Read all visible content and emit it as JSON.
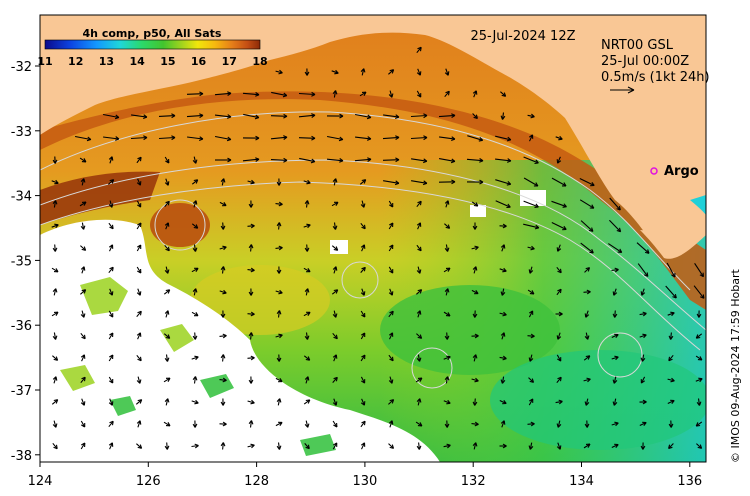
{
  "header": {
    "sst_product": "4h comp, p50, All Sats",
    "date_label": "25-Jul-2024 12Z"
  },
  "colorbar": {
    "ticks": [
      "11",
      "12",
      "13",
      "14",
      "15",
      "16",
      "17",
      "18"
    ],
    "colors": [
      "#0b0a8c",
      "#0c45e3",
      "#1398ff",
      "#1fd7d8",
      "#2bd96b",
      "#43c52e",
      "#9bd21f",
      "#f1e60c",
      "#f7b90f",
      "#e57e19",
      "#c54f14",
      "#8c2a08"
    ]
  },
  "current_box": {
    "line1": "NRT00 GSL",
    "line2": "25-Jul 00:00Z",
    "line3": "0.5m/s (1kt 24h)"
  },
  "argo_label": "Argo",
  "axes": {
    "x_ticks": [
      "124",
      "126",
      "128",
      "130",
      "132",
      "134",
      "136"
    ],
    "y_ticks": [
      "-32",
      "-33",
      "-34",
      "-35",
      "-36",
      "-37",
      "-38"
    ]
  },
  "credit": "© IMOS 09-Aug-2024 17:59 Hobart",
  "colors": {
    "land": "#f9c795",
    "sea_warm": "#d9711a",
    "sea_mid": "#b7d61f",
    "sea_cool": "#2fc04a",
    "cloud": "#ffffff"
  }
}
